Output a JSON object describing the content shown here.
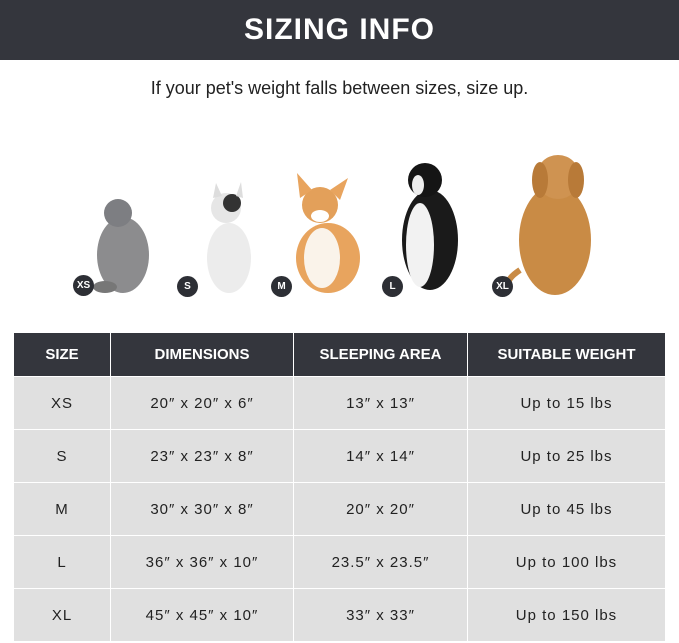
{
  "header": {
    "title": "SIZING INFO"
  },
  "subtitle": "If your pet's weight falls between sizes, size up.",
  "pets": [
    {
      "size": "XS",
      "animal": "gray cat"
    },
    {
      "size": "S",
      "animal": "french bulldog"
    },
    {
      "size": "M",
      "animal": "corgi"
    },
    {
      "size": "L",
      "animal": "border collie"
    },
    {
      "size": "XL",
      "animal": "golden retriever"
    }
  ],
  "table": {
    "headers": [
      "SIZE",
      "DIMENSIONS",
      "SLEEPING AREA",
      "SUITABLE WEIGHT"
    ],
    "rows": [
      [
        "XS",
        "20″ x 20″ x 6″",
        "13″ x 13″",
        "Up to 15 lbs"
      ],
      [
        "S",
        "23″ x 23″ x 8″",
        "14″ x 14″",
        "Up to 25 lbs"
      ],
      [
        "M",
        "30″ x 30″ x 8″",
        "20″ x 20″",
        "Up to 45 lbs"
      ],
      [
        "L",
        "36″ x 36″ x 10″",
        "23.5″ x 23.5″",
        "Up to 100 lbs"
      ],
      [
        "XL",
        "45″ x 45″ x 10″",
        "33″ x 33″",
        "Up to 150 lbs"
      ]
    ]
  }
}
